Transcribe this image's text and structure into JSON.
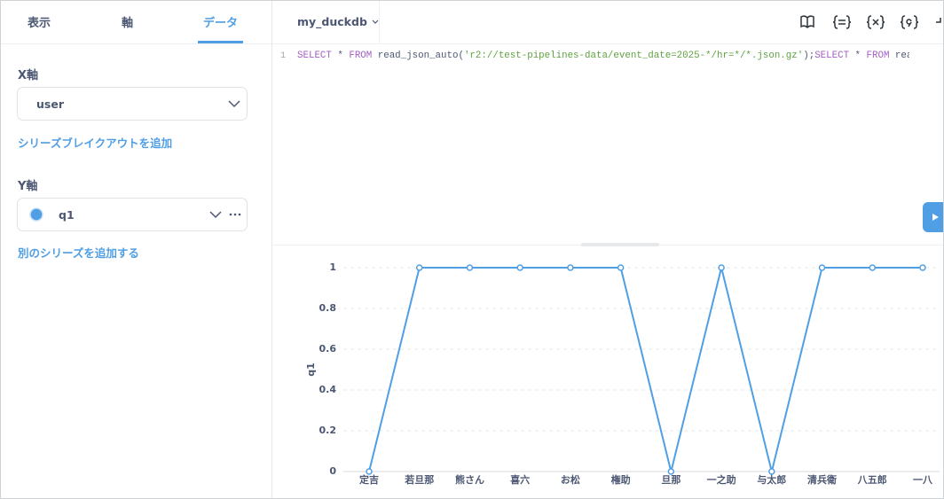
{
  "tabs": [
    "表示",
    "軸",
    "データ"
  ],
  "active_tab": 2,
  "x_axis": {
    "label": "X軸",
    "field": "user",
    "add_link": "シリーズブレイクアウトを追加"
  },
  "y_axis": {
    "label": "Y軸",
    "series": "q1",
    "add_link": "別のシリーズを追加する"
  },
  "database": "my_duckdb",
  "editor": {
    "line_number": 1,
    "tokens": [
      {
        "text": "SELECT",
        "kind": "keyword"
      },
      {
        "text": " * ",
        "kind": "plain"
      },
      {
        "text": "FROM",
        "kind": "keyword"
      },
      {
        "text": " read_json_auto(",
        "kind": "plain"
      },
      {
        "text": "'r2://test-pipelines-data/event_date=2025-*/hr=*/*.json.gz'",
        "kind": "string"
      },
      {
        "text": ");",
        "kind": "plain"
      },
      {
        "text": "SELECT",
        "kind": "keyword"
      },
      {
        "text": " * ",
        "kind": "plain"
      },
      {
        "text": "FROM",
        "kind": "keyword"
      },
      {
        "text": " reac",
        "kind": "plain"
      }
    ]
  },
  "chart_data": {
    "type": "line",
    "x_label": "user",
    "y_label": "q1",
    "categories": [
      "定吉",
      "若旦那",
      "熊さん",
      "喜六",
      "お松",
      "権助",
      "旦那",
      "一之助",
      "与太郎",
      "清兵衛",
      "八五郎",
      "一八"
    ],
    "series": [
      {
        "name": "q1",
        "color": "#509ee3",
        "values": [
          0,
          1,
          1,
          1,
          1,
          1,
          0,
          1,
          0,
          1,
          1,
          1
        ]
      }
    ],
    "ylim": [
      0,
      1
    ],
    "yticks": [
      0,
      0.2,
      0.4,
      0.6,
      0.8,
      1
    ],
    "grid": true
  }
}
